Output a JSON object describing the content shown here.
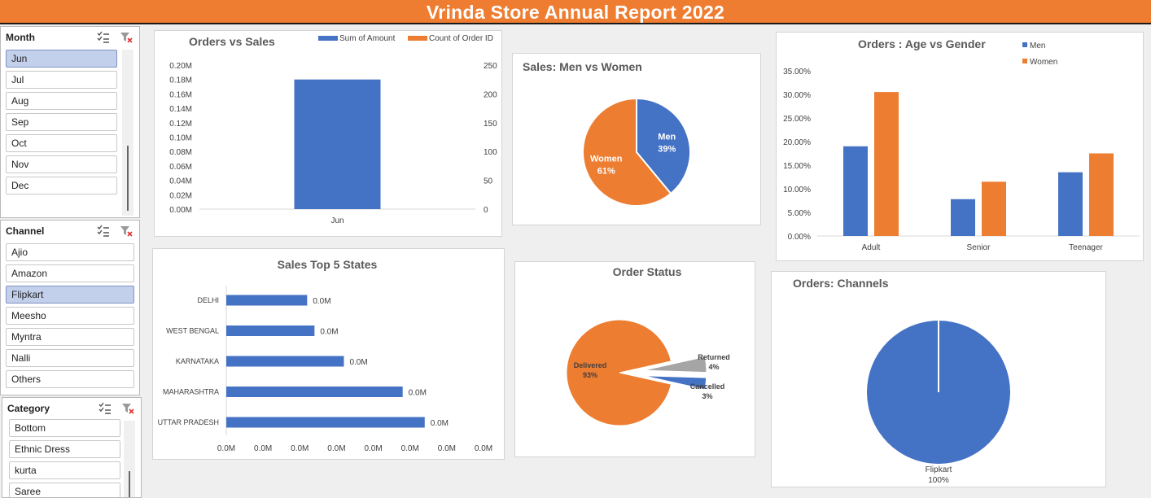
{
  "header": {
    "title": "Vrinda Store Annual Report 2022"
  },
  "colors": {
    "header_bg": "#ee7d31",
    "blue": "#4472c4",
    "orange": "#ed7d31",
    "gray": "#a5a5a5",
    "selected": "#c3d0ec"
  },
  "slicers": {
    "month": {
      "title": "Month",
      "items": [
        "Jun",
        "Jul",
        "Aug",
        "Sep",
        "Oct",
        "Nov",
        "Dec"
      ],
      "selected": "Jun"
    },
    "channel": {
      "title": "Channel",
      "items": [
        "Ajio",
        "Amazon",
        "Flipkart",
        "Meesho",
        "Myntra",
        "Nalli",
        "Others"
      ],
      "selected": "Flipkart"
    },
    "category": {
      "title": "Category",
      "items": [
        "Bottom",
        "Ethnic Dress",
        "kurta",
        "Saree"
      ],
      "selected": ""
    },
    "icons": {
      "multi_select": "multi-select-icon",
      "clear_filter": "clear-filter-icon"
    }
  },
  "chart_data": [
    {
      "id": "orders_vs_sales",
      "type": "bar",
      "title": "Orders vs Sales",
      "categories": [
        "Jun"
      ],
      "series": [
        {
          "name": "Sum of Amount",
          "values": [
            0.18
          ],
          "color": "#4472c4",
          "axis": "left"
        },
        {
          "name": "Count of Order ID",
          "values": [
            null
          ],
          "color": "#ed7d31",
          "axis": "right"
        }
      ],
      "left_ticks": [
        "0.00M",
        "0.02M",
        "0.04M",
        "0.06M",
        "0.08M",
        "0.10M",
        "0.12M",
        "0.14M",
        "0.16M",
        "0.18M",
        "0.20M"
      ],
      "ylim": [
        0,
        0.2
      ],
      "right_ticks": [
        "0",
        "50",
        "100",
        "150",
        "200",
        "250"
      ],
      "y2lim": [
        0,
        250
      ],
      "legend": "top-right"
    },
    {
      "id": "sales_men_women",
      "type": "pie",
      "title": "Sales: Men vs Women",
      "slices": [
        {
          "name": "Men",
          "value": 39,
          "label": "39%",
          "color": "#4472c4"
        },
        {
          "name": "Women",
          "value": 61,
          "label": "61%",
          "color": "#ed7d31"
        }
      ]
    },
    {
      "id": "age_vs_gender",
      "type": "bar",
      "title": "Orders : Age vs Gender",
      "categories": [
        "Adult",
        "Senior",
        "Teenager"
      ],
      "series": [
        {
          "name": "Men",
          "values": [
            19.0,
            7.8,
            13.5
          ],
          "color": "#4472c4"
        },
        {
          "name": "Women",
          "values": [
            30.5,
            11.5,
            17.5
          ],
          "color": "#ed7d31"
        }
      ],
      "ticks": [
        "0.00%",
        "5.00%",
        "10.00%",
        "15.00%",
        "20.00%",
        "25.00%",
        "30.00%",
        "35.00%"
      ],
      "ylim": [
        0,
        35
      ],
      "legend": "top-right"
    },
    {
      "id": "top5_states",
      "type": "bar",
      "orientation": "horizontal",
      "title": "Sales Top 5 States",
      "categories": [
        "DELHI",
        "WEST BENGAL",
        "KARNATAKA",
        "MAHARASHTRA",
        "UTTAR PRADESH"
      ],
      "values": [
        0.022,
        0.024,
        0.032,
        0.048,
        0.054
      ],
      "data_labels": [
        "0.0M",
        "0.0M",
        "0.0M",
        "0.0M",
        "0.0M"
      ],
      "xticks": [
        "0.0M",
        "0.0M",
        "0.0M",
        "0.0M",
        "0.0M",
        "0.0M",
        "0.0M",
        "0.0M"
      ],
      "xlim": [
        0,
        0.07
      ],
      "color": "#4472c4"
    },
    {
      "id": "order_status",
      "type": "pie",
      "title": "Order Status",
      "slices": [
        {
          "name": "Delivered",
          "value": 93,
          "label": "93%",
          "color": "#ed7d31"
        },
        {
          "name": "Returned",
          "value": 4,
          "label": "4%",
          "color": "#a5a5a5"
        },
        {
          "name": "Cancelled",
          "value": 3,
          "label": "3%",
          "color": "#4472c4"
        }
      ]
    },
    {
      "id": "orders_channels",
      "type": "pie",
      "title": "Orders: Channels",
      "slices": [
        {
          "name": "Flipkart",
          "value": 100,
          "label": "100%",
          "color": "#4472c4"
        }
      ]
    }
  ]
}
